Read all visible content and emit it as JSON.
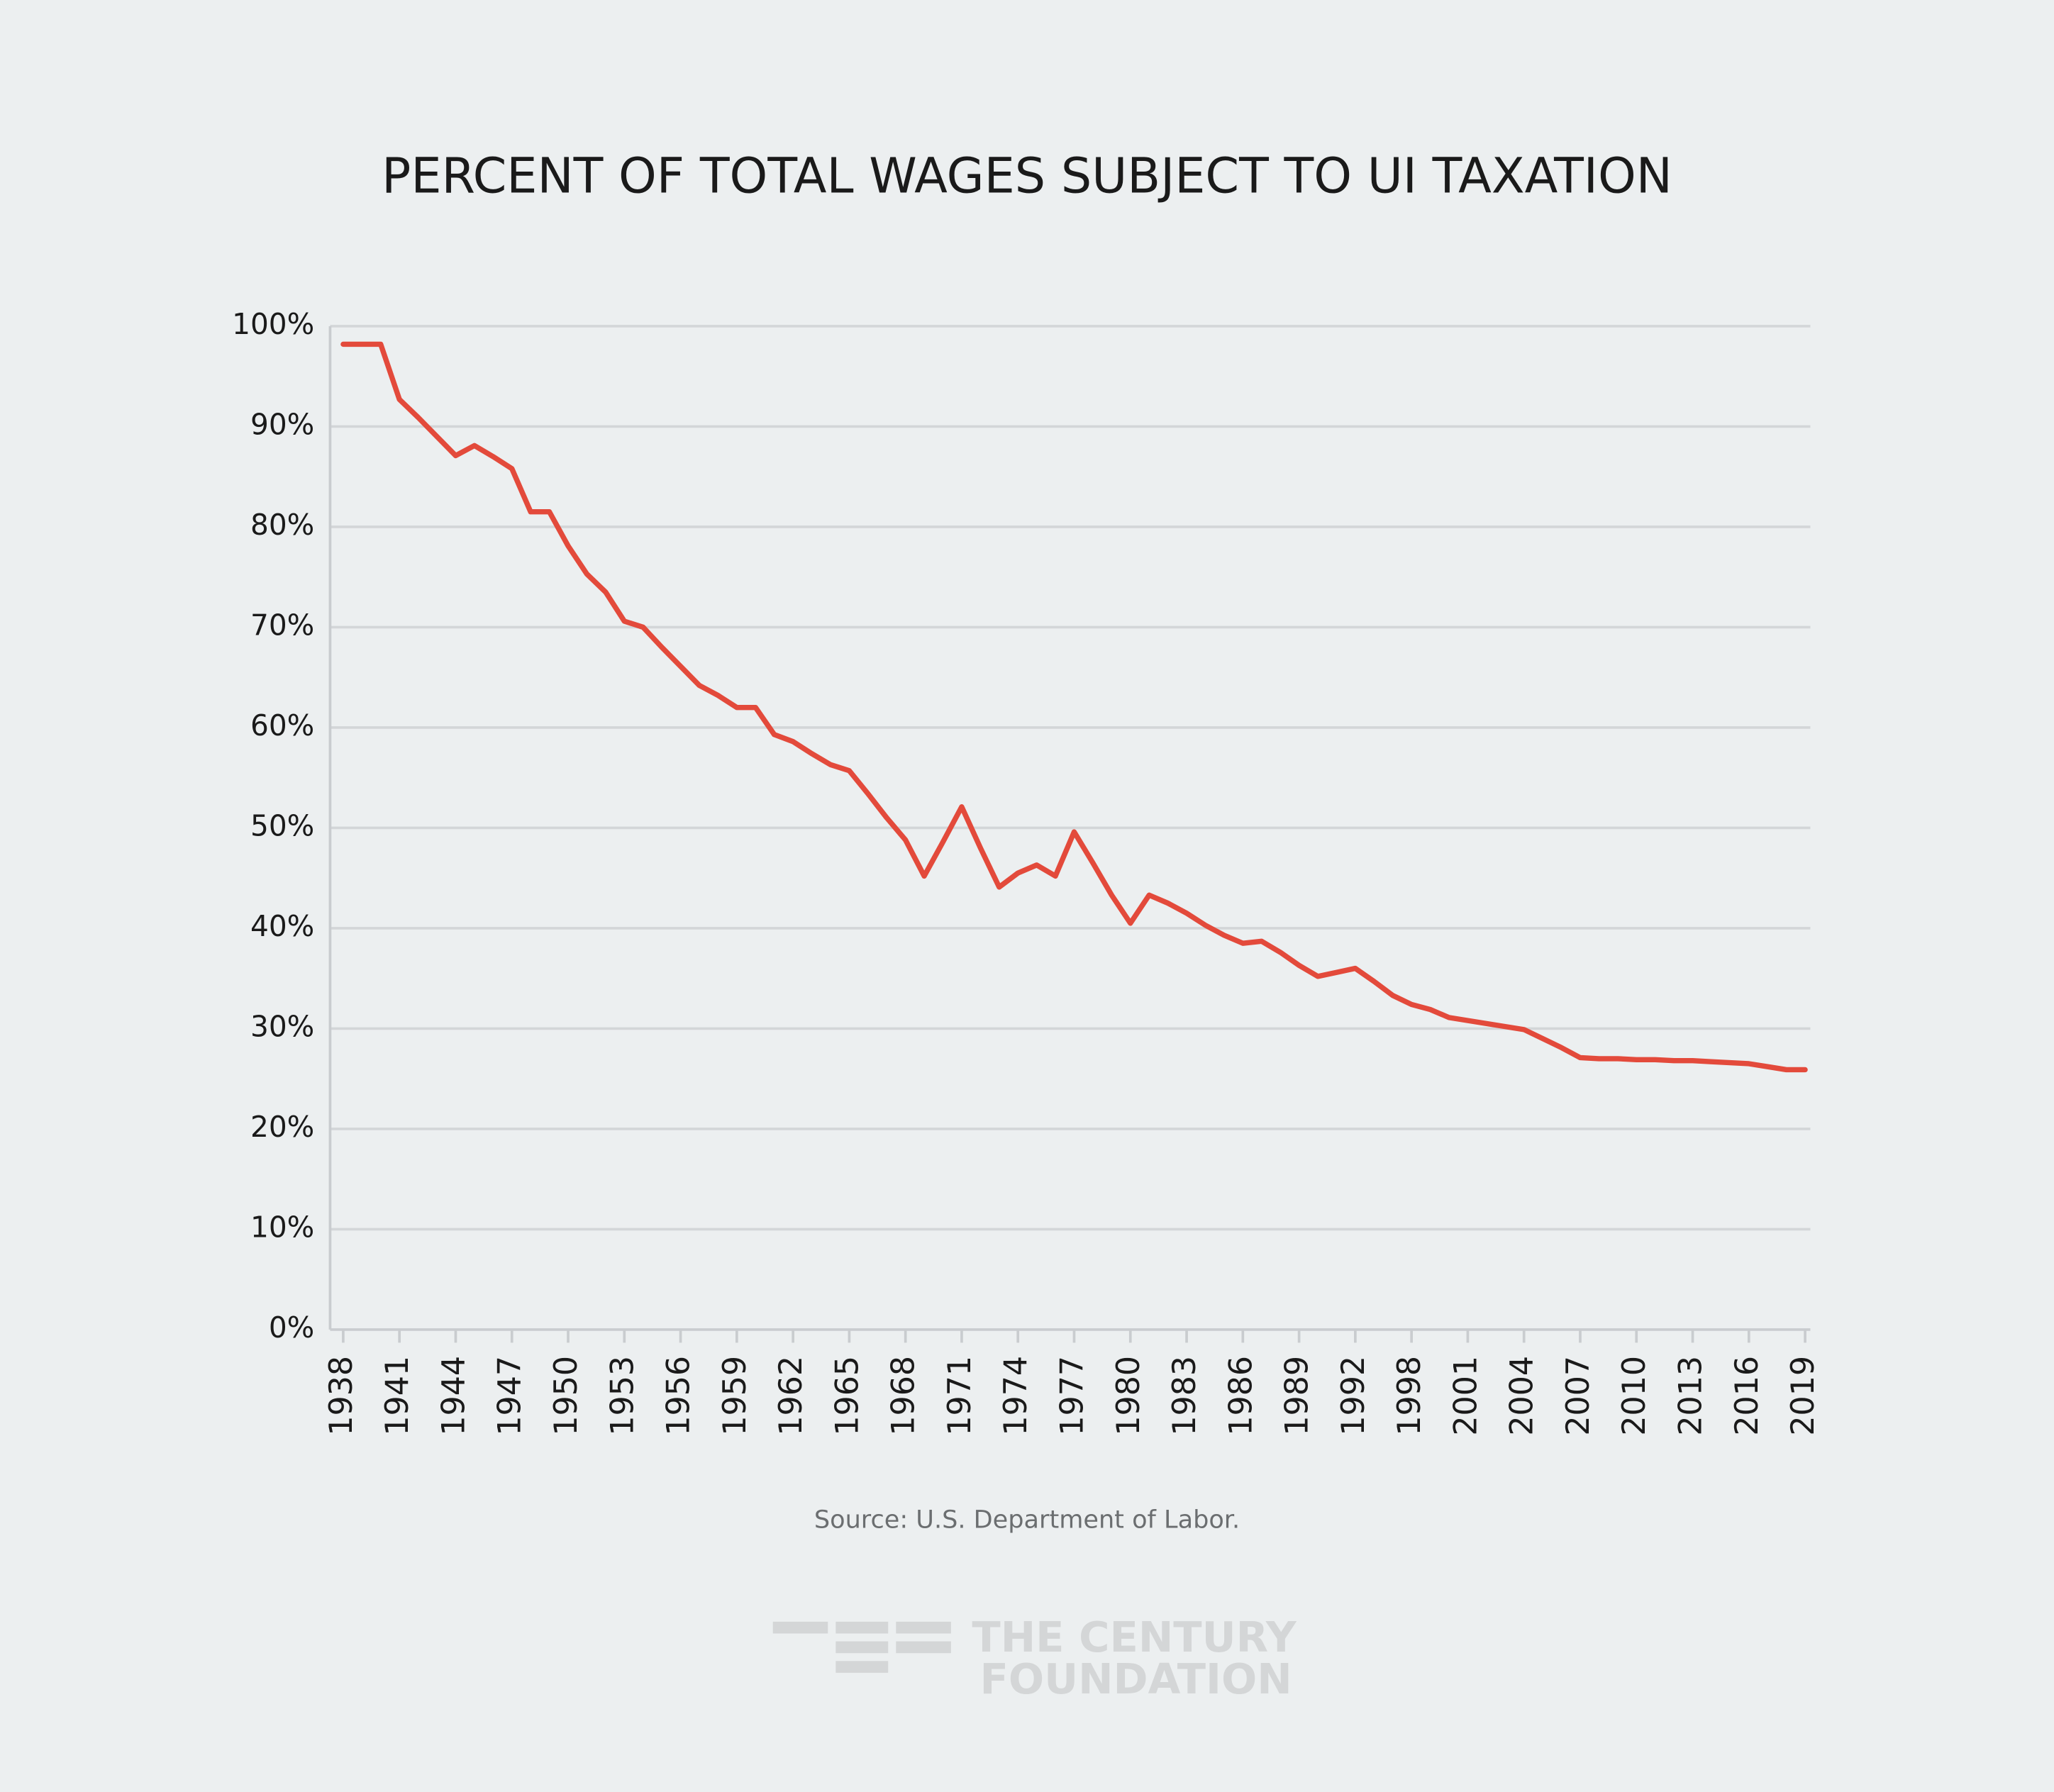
{
  "chart_data": {
    "type": "line",
    "title": "PERCENT OF TOTAL WAGES SUBJECT TO UI TAXATION",
    "source": "Source: U.S. Department of Labor.",
    "brand": [
      "THE CENTURY",
      "FOUNDATION"
    ],
    "categories": [
      "1938",
      null,
      null,
      "1941",
      null,
      null,
      "1944",
      null,
      null,
      "1947",
      null,
      null,
      "1950",
      null,
      null,
      "1953",
      null,
      null,
      "1956",
      null,
      null,
      "1959",
      null,
      null,
      "1962",
      null,
      null,
      "1965",
      null,
      null,
      "1968",
      null,
      null,
      "1971",
      null,
      null,
      "1974",
      null,
      null,
      "1977",
      null,
      null,
      "1980",
      null,
      null,
      "1983",
      null,
      null,
      "1986",
      null,
      null,
      "1989",
      null,
      null,
      "1992",
      null,
      null,
      "1998",
      null,
      null,
      "2001",
      null,
      null,
      "2004",
      null,
      null,
      "2007",
      null,
      null,
      "2010",
      null,
      null,
      "2013",
      null,
      null,
      "2016",
      null,
      null,
      "2019"
    ],
    "series": [
      {
        "name": "Percent of total wages",
        "color": "#e34a3b",
        "values": [
          98.2,
          98.2,
          98.2,
          92.7,
          90.9,
          89.0,
          87.1,
          88.1,
          87.0,
          85.8,
          81.5,
          81.5,
          78.1,
          75.3,
          73.5,
          70.6,
          70.0,
          68.0,
          66.1,
          64.2,
          63.2,
          62.0,
          62.0,
          59.3,
          58.6,
          57.4,
          56.3,
          55.7,
          53.4,
          51.0,
          48.8,
          45.2,
          48.6,
          52.1,
          48.0,
          44.1,
          45.5,
          46.3,
          45.2,
          49.6,
          46.5,
          43.3,
          40.5,
          43.3,
          42.5,
          41.5,
          40.3,
          39.3,
          38.5,
          38.7,
          37.6,
          36.3,
          35.2,
          35.6,
          36.0,
          34.7,
          33.3,
          32.4,
          31.9,
          31.1,
          30.8,
          30.5,
          30.2,
          29.9,
          29.0,
          28.1,
          27.1,
          27.0,
          27.0,
          26.9,
          26.9,
          26.8,
          26.8,
          26.7,
          26.6,
          26.5,
          26.2,
          25.9,
          25.9
        ]
      }
    ],
    "ylim": [
      0,
      100
    ],
    "yticks": [
      {
        "value": 0,
        "label": "0%"
      },
      {
        "value": 10,
        "label": "10%"
      },
      {
        "value": 20,
        "label": "20%"
      },
      {
        "value": 30,
        "label": "30%"
      },
      {
        "value": 40,
        "label": "40%"
      },
      {
        "value": 50,
        "label": "50%"
      },
      {
        "value": 60,
        "label": "60%"
      },
      {
        "value": 70,
        "label": "70%"
      },
      {
        "value": 80,
        "label": "80%"
      },
      {
        "value": 90,
        "label": "90%"
      },
      {
        "value": 100,
        "label": "100%"
      }
    ],
    "grid": true
  }
}
